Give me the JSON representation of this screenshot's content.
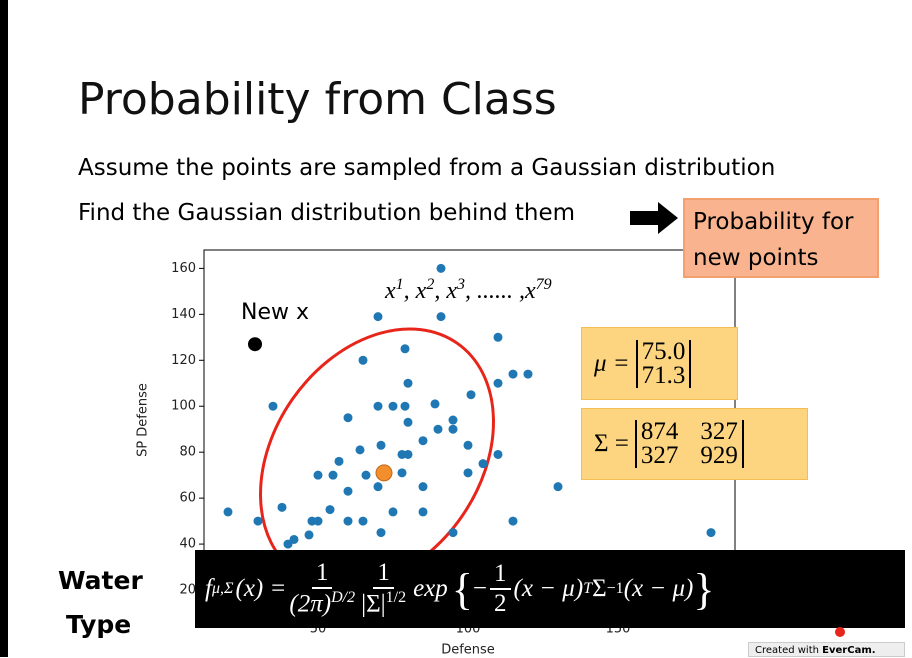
{
  "slide": {
    "title": "Probability from Class",
    "bullets": [
      "Assume the points are sampled from a Gaussian distribution",
      "Find the Gaussian distribution behind them"
    ],
    "callout": "Probability for new points",
    "samples": [
      "x",
      "1",
      ", x",
      "2",
      ", x",
      "3",
      ", ...... ,x",
      "79"
    ],
    "mean": {
      "symbol": "μ =",
      "entries": [
        "75.0",
        "71.3"
      ]
    },
    "covariance": {
      "symbol": "Σ =",
      "entries": [
        [
          "874",
          "327"
        ],
        [
          "327",
          "929"
        ]
      ]
    },
    "new_point_label": "New x",
    "side_label": [
      "Water",
      "Type"
    ],
    "formula": {
      "f": "f",
      "sub": "μ,Σ",
      "lhs": "(x) =",
      "n1": "1",
      "d1": "(2π)",
      "d1e": "D/2",
      "n2": "1",
      "d2": "|Σ|",
      "d2e": "1/2",
      "exp": "exp",
      "open": "{",
      "minus": "−",
      "n3": "1",
      "d3": "2",
      "t1": "(x − μ)",
      "t1e": "T",
      "sig": "Σ",
      "sige": "−1",
      "t2": "(x − μ)",
      "close": "}"
    },
    "watermark": [
      "Created with",
      "EverCam."
    ]
  },
  "chart_data": {
    "type": "scatter",
    "xlabel": "Defense",
    "ylabel": "SP Defense",
    "xlim": [
      12,
      189
    ],
    "ylim": [
      10,
      168
    ],
    "xticks": [
      50,
      100,
      150
    ],
    "yticks": [
      20,
      40,
      60,
      80,
      100,
      120,
      140,
      160
    ],
    "series": [
      {
        "color": "#1f77b4",
        "x": [
          91,
          70,
          91,
          110,
          79,
          65,
          115,
          120,
          110,
          80,
          35,
          70,
          75,
          79,
          89,
          101,
          60,
          95,
          80,
          90,
          95,
          85,
          71,
          64,
          78,
          80,
          100,
          110,
          57,
          105,
          50,
          55,
          66,
          78,
          100,
          70,
          85,
          60,
          130,
          20,
          38,
          54,
          75,
          85,
          30,
          48,
          50,
          60,
          65,
          115,
          181,
          40,
          42,
          71,
          95,
          47
        ],
        "y": [
          160,
          139,
          139,
          130,
          125,
          120,
          114,
          114,
          110,
          110,
          100,
          100,
          100,
          100,
          101,
          105,
          95,
          94,
          93,
          90,
          90,
          85,
          83,
          81,
          79,
          79,
          83,
          79,
          76,
          75,
          70,
          70,
          70,
          71,
          71,
          65,
          65,
          63,
          65,
          54,
          56,
          55,
          54,
          54,
          50,
          50,
          50,
          50,
          50,
          50,
          45,
          40,
          42,
          45,
          45,
          44
        ]
      },
      {
        "color": "#000000",
        "x": [
          29
        ],
        "y": [
          127
        ]
      },
      {
        "color": "#f28e2b",
        "x": [
          72
        ],
        "y": [
          71
        ]
      }
    ]
  }
}
